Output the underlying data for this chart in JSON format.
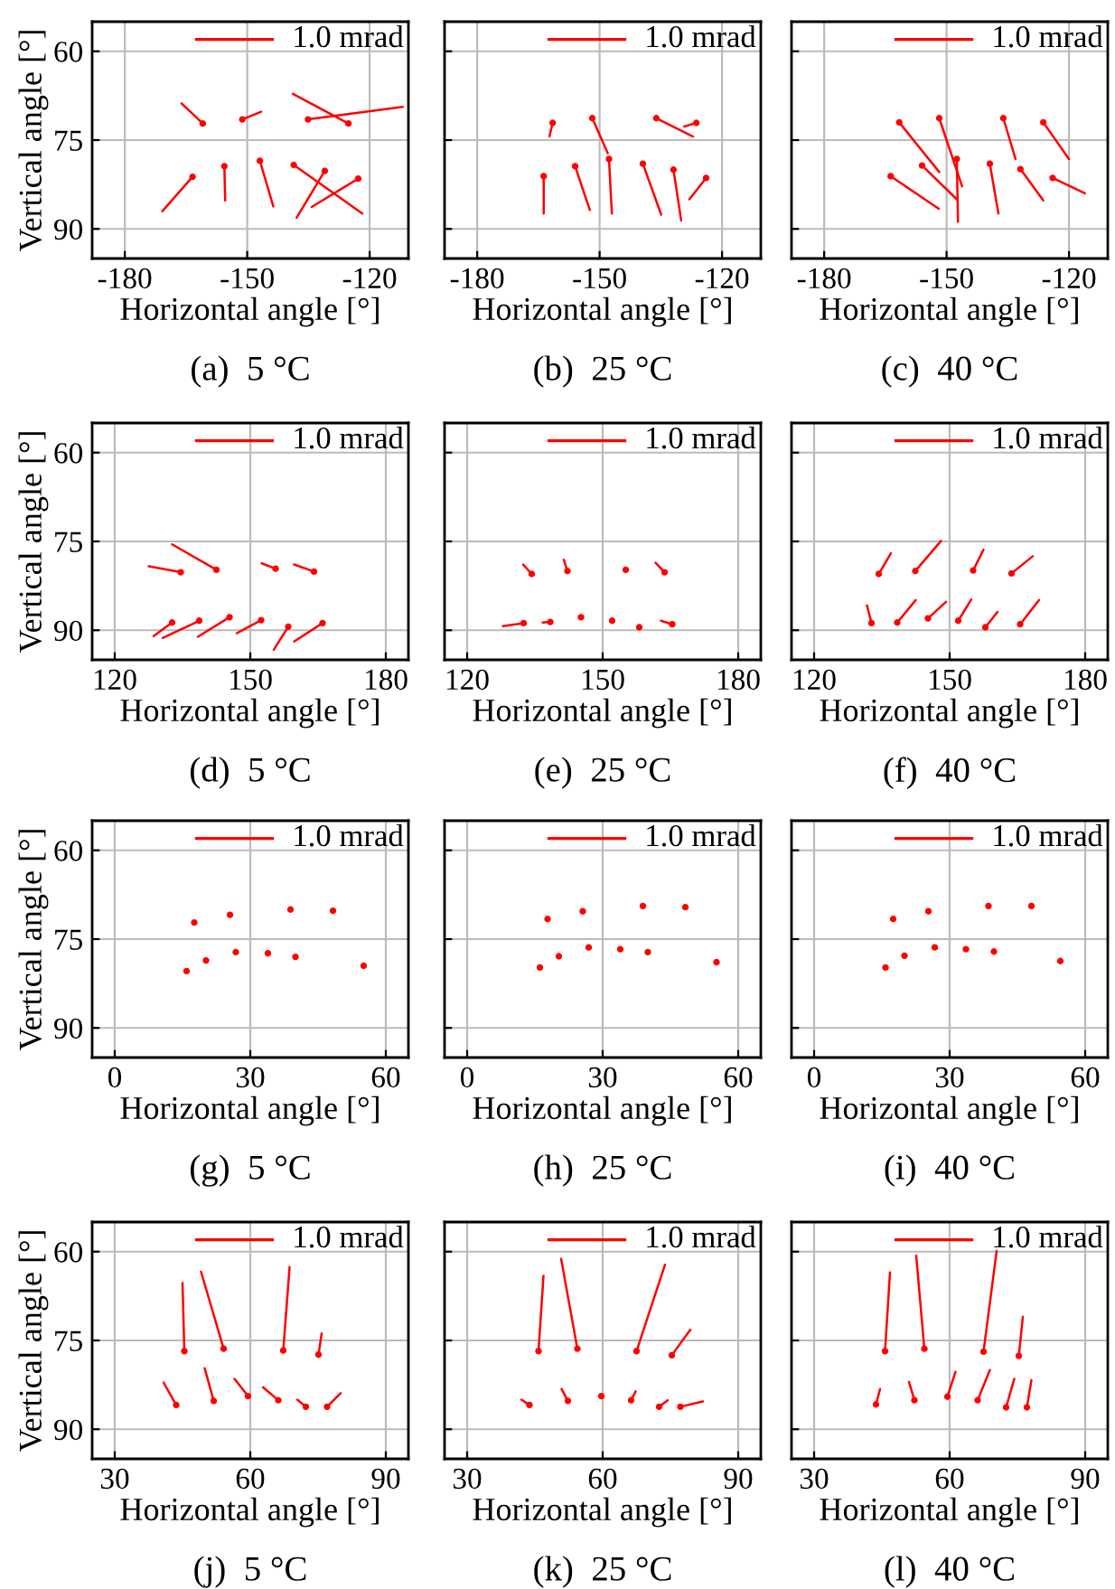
{
  "chart_data": [
    {
      "type": "line",
      "title": "(a)  5 °C",
      "xlabel": "Horizontal angle [°]",
      "ylabel": "Vertical angle [°]",
      "xlim": [
        -188,
        -110.5
      ],
      "xticks": [
        -180,
        -150,
        -120
      ],
      "ylim": [
        95,
        55
      ],
      "yticks": [
        60,
        75,
        90
      ],
      "grid": true,
      "annotations": [
        "1.0 mrad"
      ],
      "series": [
        {
          "color": "#ff0000",
          "x": [
            -160.9,
            -166.1
          ],
          "values": [
            72.2,
            68.8
          ]
        },
        {
          "color": "#ff0000",
          "x": [
            -151.2,
            -146.6
          ],
          "values": [
            71.5,
            70.2
          ]
        },
        {
          "color": "#ff0000",
          "x": [
            -135.1,
            -111.9
          ],
          "values": [
            71.5,
            69.4
          ]
        },
        {
          "color": "#ff0000",
          "x": [
            -125.2,
            -138.8
          ],
          "values": [
            72.2,
            67.2
          ]
        },
        {
          "color": "#ff0000",
          "x": [
            -163.4,
            -170.8
          ],
          "values": [
            81.2,
            87.0
          ]
        },
        {
          "color": "#ff0000",
          "x": [
            -155.6,
            -155.4
          ],
          "values": [
            79.4,
            85.2
          ]
        },
        {
          "color": "#ff0000",
          "x": [
            -146.9,
            -143.6
          ],
          "values": [
            78.5,
            86.2
          ]
        },
        {
          "color": "#ff0000",
          "x": [
            -138.6,
            -121.8
          ],
          "values": [
            79.2,
            87.4
          ]
        },
        {
          "color": "#ff0000",
          "x": [
            -131.0,
            -137.9
          ],
          "values": [
            80.2,
            88.1
          ]
        },
        {
          "color": "#ff0000",
          "x": [
            -122.8,
            -134.2
          ],
          "values": [
            81.5,
            86.3
          ]
        },
        {
          "type": "scatter",
          "color": "#ff0000",
          "marker": "circle",
          "x": [
            -160.9,
            -151.2,
            -135.1,
            -125.2,
            -163.4,
            -155.6,
            -146.9,
            -138.6,
            -131.0,
            -122.8
          ],
          "values": [
            72.2,
            71.5,
            71.5,
            72.2,
            81.2,
            79.4,
            78.5,
            79.2,
            80.2,
            81.5
          ]
        }
      ]
    },
    {
      "type": "line",
      "title": "(b)  25 °C",
      "xlabel": "Horizontal angle [°]",
      "xlim": [
        -188,
        -110.5
      ],
      "xticks": [
        -180,
        -150,
        -120
      ],
      "ylim": [
        95,
        55
      ],
      "yticks": [
        60,
        75,
        90
      ],
      "grid": true,
      "tick_labels": "x",
      "annotations": [
        "1.0 mrad"
      ],
      "series": [
        {
          "color": "#ff0000",
          "x": [
            -161.5,
            -162.3
          ],
          "values": [
            72.1,
            74.4
          ]
        },
        {
          "color": "#ff0000",
          "x": [
            -151.8,
            -148.0
          ],
          "values": [
            71.3,
            77.2
          ]
        },
        {
          "color": "#ff0000",
          "x": [
            -136.1,
            -127.1
          ],
          "values": [
            71.3,
            74.4
          ]
        },
        {
          "color": "#ff0000",
          "x": [
            -126.3,
            -129.3
          ],
          "values": [
            72.1,
            72.7
          ]
        },
        {
          "color": "#ff0000",
          "x": [
            -163.7,
            -163.7
          ],
          "values": [
            81.1,
            87.4
          ]
        },
        {
          "color": "#ff0000",
          "x": [
            -156.0,
            -152.4
          ],
          "values": [
            79.4,
            86.8
          ]
        },
        {
          "color": "#ff0000",
          "x": [
            -147.7,
            -147.0
          ],
          "values": [
            78.2,
            87.4
          ]
        },
        {
          "color": "#ff0000",
          "x": [
            -139.4,
            -134.9
          ],
          "values": [
            79.0,
            87.6
          ]
        },
        {
          "color": "#ff0000",
          "x": [
            -131.9,
            -130.0
          ],
          "values": [
            80.0,
            88.6
          ]
        },
        {
          "color": "#ff0000",
          "x": [
            -123.9,
            -128.0
          ],
          "values": [
            81.4,
            85.0
          ]
        },
        {
          "type": "scatter",
          "color": "#ff0000",
          "marker": "circle",
          "x": [
            -161.5,
            -151.8,
            -136.1,
            -126.3,
            -163.7,
            -156.0,
            -147.7,
            -139.4,
            -131.9,
            -123.9
          ],
          "values": [
            72.1,
            71.3,
            71.3,
            72.1,
            81.1,
            79.4,
            78.2,
            79.0,
            80.0,
            81.4
          ]
        }
      ]
    },
    {
      "type": "line",
      "title": "(c)  40 °C",
      "xlabel": "Horizontal angle [°]",
      "xlim": [
        -188,
        -110.5
      ],
      "xticks": [
        -180,
        -150,
        -120
      ],
      "ylim": [
        95,
        55
      ],
      "yticks": [
        60,
        75,
        90
      ],
      "grid": true,
      "tick_labels": "x",
      "annotations": [
        "1.0 mrad"
      ],
      "series": [
        {
          "color": "#ff0000",
          "x": [
            -161.6,
            -151.8
          ],
          "values": [
            72.0,
            80.4
          ]
        },
        {
          "color": "#ff0000",
          "x": [
            -151.8,
            -146.2
          ],
          "values": [
            71.3,
            82.8
          ]
        },
        {
          "color": "#ff0000",
          "x": [
            -136.1,
            -133.1
          ],
          "values": [
            71.3,
            78.2
          ]
        },
        {
          "color": "#ff0000",
          "x": [
            -126.3,
            -120.0
          ],
          "values": [
            72.0,
            78.2
          ]
        },
        {
          "color": "#ff0000",
          "x": [
            -163.7,
            -151.9
          ],
          "values": [
            81.1,
            86.6
          ]
        },
        {
          "color": "#ff0000",
          "x": [
            -156.0,
            -147.5
          ],
          "values": [
            79.3,
            85.0
          ]
        },
        {
          "color": "#ff0000",
          "x": [
            -147.5,
            -147.2
          ],
          "values": [
            78.2,
            88.8
          ]
        },
        {
          "color": "#ff0000",
          "x": [
            -139.4,
            -137.3
          ],
          "values": [
            79.0,
            87.4
          ]
        },
        {
          "color": "#ff0000",
          "x": [
            -131.9,
            -126.3
          ],
          "values": [
            79.9,
            85.2
          ]
        },
        {
          "color": "#ff0000",
          "x": [
            -124.0,
            -116.1
          ],
          "values": [
            81.4,
            84.0
          ]
        },
        {
          "type": "scatter",
          "color": "#ff0000",
          "marker": "circle",
          "x": [
            -161.6,
            -151.8,
            -136.1,
            -126.3,
            -163.7,
            -156.0,
            -147.5,
            -139.4,
            -131.9,
            -124.0
          ],
          "values": [
            72.0,
            71.3,
            71.3,
            72.0,
            81.1,
            79.3,
            78.2,
            79.0,
            79.9,
            81.4
          ]
        }
      ]
    },
    {
      "type": "line",
      "title": "(d)  5 °C",
      "xlabel": "Horizontal angle [°]",
      "ylabel": "Vertical angle [°]",
      "xlim": [
        115,
        185
      ],
      "xticks": [
        120,
        150,
        180
      ],
      "ylim": [
        95,
        55
      ],
      "yticks": [
        60,
        75,
        90
      ],
      "grid": true,
      "annotations": [
        "1.0 mrad"
      ],
      "series": [
        {
          "color": "#ff0000",
          "x": [
            134.6,
            127.5
          ],
          "values": [
            80.2,
            79.2
          ]
        },
        {
          "color": "#ff0000",
          "x": [
            142.5,
            132.7
          ],
          "values": [
            79.8,
            75.5
          ]
        },
        {
          "color": "#ff0000",
          "x": [
            155.6,
            152.5
          ],
          "values": [
            79.6,
            78.7
          ]
        },
        {
          "color": "#ff0000",
          "x": [
            164.1,
            159.7
          ],
          "values": [
            80.1,
            78.9
          ]
        },
        {
          "color": "#ff0000",
          "x": [
            132.7,
            128.6
          ],
          "values": [
            88.7,
            91.0
          ]
        },
        {
          "color": "#ff0000",
          "x": [
            138.7,
            130.6
          ],
          "values": [
            88.4,
            91.3
          ]
        },
        {
          "color": "#ff0000",
          "x": [
            145.4,
            138.4
          ],
          "values": [
            87.8,
            91.1
          ]
        },
        {
          "color": "#ff0000",
          "x": [
            152.4,
            147.0
          ],
          "values": [
            88.3,
            90.5
          ]
        },
        {
          "color": "#ff0000",
          "x": [
            158.4,
            155.2
          ],
          "values": [
            89.4,
            93.3
          ]
        },
        {
          "color": "#ff0000",
          "x": [
            166.0,
            159.7
          ],
          "values": [
            88.8,
            91.9
          ]
        },
        {
          "type": "scatter",
          "color": "#ff0000",
          "marker": "circle",
          "x": [
            134.6,
            142.5,
            155.6,
            164.1,
            132.7,
            138.7,
            145.4,
            152.4,
            158.4,
            166.0
          ],
          "values": [
            80.2,
            79.8,
            79.6,
            80.1,
            88.7,
            88.4,
            87.8,
            88.3,
            89.4,
            88.8
          ]
        }
      ]
    },
    {
      "type": "line",
      "title": "(e)  25 °C",
      "xlabel": "Horizontal angle [°]",
      "xlim": [
        115,
        185
      ],
      "xticks": [
        120,
        150,
        180
      ],
      "ylim": [
        95,
        55
      ],
      "yticks": [
        60,
        75,
        90
      ],
      "grid": true,
      "tick_labels": "x",
      "annotations": [
        "1.0 mrad"
      ],
      "series": [
        {
          "color": "#ff0000",
          "x": [
            134.3,
            132.4
          ],
          "values": [
            80.5,
            78.9
          ]
        },
        {
          "color": "#ff0000",
          "x": [
            142.2,
            141.4
          ],
          "values": [
            80.0,
            78.1
          ]
        },
        {
          "color": "#ff0000",
          "x": [
            163.7,
            161.7
          ],
          "values": [
            80.2,
            78.6
          ]
        },
        {
          "color": "#ff0000",
          "x": [
            132.5,
            127.9
          ],
          "values": [
            88.8,
            89.3
          ]
        },
        {
          "color": "#ff0000",
          "x": [
            138.4,
            136.7
          ],
          "values": [
            88.6,
            88.7
          ]
        },
        {
          "color": "#ff0000",
          "x": [
            165.4,
            162.9
          ],
          "values": [
            89.0,
            88.4
          ]
        },
        {
          "type": "scatter",
          "color": "#ff0000",
          "marker": "circle",
          "x": [
            134.3,
            142.2,
            155.1,
            163.7,
            132.5,
            138.4,
            145.2,
            152.1,
            158.1,
            165.4
          ],
          "values": [
            80.5,
            80.0,
            79.8,
            80.2,
            88.8,
            88.6,
            87.8,
            88.4,
            89.5,
            89.0
          ]
        }
      ]
    },
    {
      "type": "line",
      "title": "(f)  40 °C",
      "xlabel": "Horizontal angle [°]",
      "xlim": [
        115,
        185
      ],
      "xticks": [
        120,
        150,
        180
      ],
      "ylim": [
        95,
        55
      ],
      "yticks": [
        60,
        75,
        90
      ],
      "grid": true,
      "tick_labels": "x",
      "annotations": [
        "1.0 mrad"
      ],
      "series": [
        {
          "color": "#ff0000",
          "x": [
            134.3,
            137.0
          ],
          "values": [
            80.5,
            77.0
          ]
        },
        {
          "color": "#ff0000",
          "x": [
            142.4,
            148.1
          ],
          "values": [
            80.0,
            74.9
          ]
        },
        {
          "color": "#ff0000",
          "x": [
            155.2,
            157.5
          ],
          "values": [
            79.9,
            76.4
          ]
        },
        {
          "color": "#ff0000",
          "x": [
            163.7,
            168.4
          ],
          "values": [
            80.4,
            77.5
          ]
        },
        {
          "color": "#ff0000",
          "x": [
            132.7,
            131.7
          ],
          "values": [
            88.8,
            85.8
          ]
        },
        {
          "color": "#ff0000",
          "x": [
            138.4,
            142.5
          ],
          "values": [
            88.7,
            84.9
          ]
        },
        {
          "color": "#ff0000",
          "x": [
            145.2,
            149.2
          ],
          "values": [
            88.0,
            85.2
          ]
        },
        {
          "color": "#ff0000",
          "x": [
            151.9,
            154.8
          ],
          "values": [
            88.4,
            84.8
          ]
        },
        {
          "color": "#ff0000",
          "x": [
            157.9,
            160.6
          ],
          "values": [
            89.5,
            86.9
          ]
        },
        {
          "color": "#ff0000",
          "x": [
            165.6,
            169.8
          ],
          "values": [
            89.0,
            84.9
          ]
        },
        {
          "type": "scatter",
          "color": "#ff0000",
          "marker": "circle",
          "x": [
            134.3,
            142.4,
            155.2,
            163.7,
            132.7,
            138.4,
            145.2,
            151.9,
            157.9,
            165.6
          ],
          "values": [
            80.5,
            80.0,
            79.9,
            80.4,
            88.8,
            88.7,
            88.0,
            88.4,
            89.5,
            89.0
          ]
        }
      ]
    },
    {
      "type": "scatter",
      "title": "(g)  5 °C",
      "xlabel": "Horizontal angle [°]",
      "ylabel": "Vertical angle [°]",
      "xlim": [
        -5,
        65
      ],
      "xticks": [
        0,
        30,
        60
      ],
      "ylim": [
        95,
        55
      ],
      "yticks": [
        60,
        75,
        90
      ],
      "grid": true,
      "marker": "circle",
      "annotations": [
        "1.0 mrad"
      ],
      "series": [
        {
          "color": "#ff0000",
          "x": [
            17.6,
            25.5,
            38.9,
            48.3,
            15.9,
            20.2,
            26.8,
            33.9,
            40.0,
            55.1
          ],
          "values": [
            72.2,
            70.9,
            70.0,
            70.2,
            80.4,
            78.6,
            77.2,
            77.4,
            78.0,
            79.5
          ]
        }
      ]
    },
    {
      "type": "scatter",
      "title": "(h)  25 °C",
      "xlabel": "Horizontal angle [°]",
      "xlim": [
        -5,
        65
      ],
      "xticks": [
        0,
        30,
        60
      ],
      "ylim": [
        95,
        55
      ],
      "yticks": [
        60,
        75,
        90
      ],
      "grid": true,
      "marker": "circle",
      "tick_labels": "x",
      "annotations": [
        "1.0 mrad"
      ],
      "series": [
        {
          "color": "#ff0000",
          "x": [
            17.8,
            25.6,
            38.9,
            48.3,
            16.1,
            20.3,
            26.9,
            33.9,
            40.0,
            55.2
          ],
          "values": [
            71.6,
            70.3,
            69.4,
            69.6,
            79.8,
            77.9,
            76.4,
            76.7,
            77.2,
            78.9
          ]
        }
      ]
    },
    {
      "type": "scatter",
      "title": "(i)  40 °C",
      "xlabel": "Horizontal angle [°]",
      "xlim": [
        -5,
        65
      ],
      "xticks": [
        0,
        30,
        60
      ],
      "ylim": [
        95,
        55
      ],
      "yticks": [
        60,
        75,
        90
      ],
      "grid": true,
      "marker": "circle",
      "tick_labels": "x",
      "annotations": [
        "1.0 mrad"
      ],
      "series": [
        {
          "color": "#ff0000",
          "x": [
            17.5,
            25.3,
            38.6,
            48.1,
            15.8,
            20.0,
            26.7,
            33.6,
            39.8,
            54.5
          ],
          "values": [
            71.6,
            70.3,
            69.4,
            69.4,
            79.8,
            77.8,
            76.4,
            76.7,
            77.1,
            78.7
          ]
        }
      ]
    },
    {
      "type": "line",
      "title": "(j)  5 °C",
      "xlabel": "Horizontal angle [°]",
      "ylabel": "Vertical angle [°]",
      "xlim": [
        25,
        95
      ],
      "xticks": [
        30,
        60,
        90
      ],
      "ylim": [
        95,
        55
      ],
      "yticks": [
        60,
        75,
        90
      ],
      "grid": true,
      "annotations": [
        "1.0 mrad"
      ],
      "series": [
        {
          "color": "#ff0000",
          "x": [
            45.4,
            45.0
          ],
          "values": [
            76.8,
            65.3
          ]
        },
        {
          "color": "#ff0000",
          "x": [
            54.1,
            49.1
          ],
          "values": [
            76.4,
            63.4
          ]
        },
        {
          "color": "#ff0000",
          "x": [
            67.3,
            68.7
          ],
          "values": [
            76.7,
            62.6
          ]
        },
        {
          "color": "#ff0000",
          "x": [
            75.1,
            75.8
          ],
          "values": [
            77.4,
            73.8
          ]
        },
        {
          "color": "#ff0000",
          "x": [
            43.6,
            40.8
          ],
          "values": [
            85.9,
            82.1
          ]
        },
        {
          "color": "#ff0000",
          "x": [
            51.9,
            49.9
          ],
          "values": [
            85.2,
            79.7
          ]
        },
        {
          "color": "#ff0000",
          "x": [
            59.5,
            56.5
          ],
          "values": [
            84.4,
            81.5
          ]
        },
        {
          "color": "#ff0000",
          "x": [
            66.2,
            62.8
          ],
          "values": [
            85.1,
            82.9
          ]
        },
        {
          "color": "#ff0000",
          "x": [
            72.3,
            70.4
          ],
          "values": [
            86.2,
            85.0
          ]
        },
        {
          "color": "#ff0000",
          "x": [
            77.0,
            80.0
          ],
          "values": [
            86.2,
            83.9
          ]
        },
        {
          "type": "scatter",
          "color": "#ff0000",
          "marker": "circle",
          "x": [
            45.4,
            54.1,
            67.3,
            75.1,
            43.6,
            51.9,
            59.5,
            66.2,
            72.3,
            77.0
          ],
          "values": [
            76.8,
            76.4,
            76.7,
            77.4,
            85.9,
            85.2,
            84.4,
            85.1,
            86.2,
            86.2
          ]
        }
      ]
    },
    {
      "type": "line",
      "title": "(k)  25 °C",
      "xlabel": "Horizontal angle [°]",
      "xlim": [
        25,
        95
      ],
      "xticks": [
        30,
        60,
        90
      ],
      "ylim": [
        95,
        55
      ],
      "yticks": [
        60,
        75,
        90
      ],
      "grid": true,
      "tick_labels": "x",
      "annotations": [
        "1.0 mrad"
      ],
      "series": [
        {
          "color": "#ff0000",
          "x": [
            45.8,
            46.9
          ],
          "values": [
            76.8,
            64.1
          ]
        },
        {
          "color": "#ff0000",
          "x": [
            54.4,
            50.8
          ],
          "values": [
            76.4,
            61.2
          ]
        },
        {
          "color": "#ff0000",
          "x": [
            67.5,
            73.8
          ],
          "values": [
            76.8,
            62.2
          ]
        },
        {
          "color": "#ff0000",
          "x": [
            75.3,
            79.4
          ],
          "values": [
            77.5,
            73.2
          ]
        },
        {
          "color": "#ff0000",
          "x": [
            43.8,
            42.0
          ],
          "values": [
            85.9,
            85.0
          ]
        },
        {
          "color": "#ff0000",
          "x": [
            52.3,
            50.9
          ],
          "values": [
            85.2,
            83.2
          ]
        },
        {
          "color": "#ff0000",
          "x": [
            66.3,
            67.3
          ],
          "values": [
            85.1,
            83.6
          ]
        },
        {
          "color": "#ff0000",
          "x": [
            72.5,
            74.4
          ],
          "values": [
            86.2,
            85.1
          ]
        },
        {
          "color": "#ff0000",
          "x": [
            77.2,
            82.2
          ],
          "values": [
            86.2,
            85.3
          ]
        },
        {
          "type": "scatter",
          "color": "#ff0000",
          "marker": "circle",
          "x": [
            45.8,
            54.4,
            67.5,
            75.3,
            43.8,
            52.3,
            59.7,
            66.3,
            72.5,
            77.2
          ],
          "values": [
            76.8,
            76.4,
            76.8,
            77.5,
            85.9,
            85.2,
            84.4,
            85.1,
            86.2,
            86.2
          ]
        }
      ]
    },
    {
      "type": "line",
      "title": "(l)  40 °C",
      "xlabel": "Horizontal angle [°]",
      "xlim": [
        25,
        95
      ],
      "xticks": [
        30,
        60,
        90
      ],
      "ylim": [
        95,
        55
      ],
      "yticks": [
        60,
        75,
        90
      ],
      "grid": true,
      "tick_labels": "x",
      "annotations": [
        "1.0 mrad"
      ],
      "series": [
        {
          "color": "#ff0000",
          "x": [
            45.7,
            46.8
          ],
          "values": [
            76.8,
            63.5
          ]
        },
        {
          "color": "#ff0000",
          "x": [
            54.4,
            52.6
          ],
          "values": [
            76.4,
            60.7
          ]
        },
        {
          "color": "#ff0000",
          "x": [
            67.5,
            70.4
          ],
          "values": [
            76.9,
            59.9
          ]
        },
        {
          "color": "#ff0000",
          "x": [
            75.3,
            76.2
          ],
          "values": [
            77.6,
            71.0
          ]
        },
        {
          "color": "#ff0000",
          "x": [
            43.7,
            44.6
          ],
          "values": [
            85.8,
            83.2
          ]
        },
        {
          "color": "#ff0000",
          "x": [
            52.2,
            51.0
          ],
          "values": [
            85.1,
            82.0
          ]
        },
        {
          "color": "#ff0000",
          "x": [
            59.5,
            61.3
          ],
          "values": [
            84.5,
            80.3
          ]
        },
        {
          "color": "#ff0000",
          "x": [
            66.2,
            68.9
          ],
          "values": [
            85.1,
            80.0
          ]
        },
        {
          "color": "#ff0000",
          "x": [
            72.5,
            74.3
          ],
          "values": [
            86.3,
            81.5
          ]
        },
        {
          "color": "#ff0000",
          "x": [
            77.1,
            78.1
          ],
          "values": [
            86.3,
            81.7
          ]
        },
        {
          "type": "scatter",
          "color": "#ff0000",
          "marker": "circle",
          "x": [
            45.7,
            54.4,
            67.5,
            75.3,
            43.7,
            52.2,
            59.5,
            66.2,
            72.5,
            77.1
          ],
          "values": [
            76.8,
            76.4,
            76.9,
            77.6,
            85.8,
            85.1,
            84.5,
            85.1,
            86.3,
            86.3
          ]
        }
      ]
    }
  ]
}
